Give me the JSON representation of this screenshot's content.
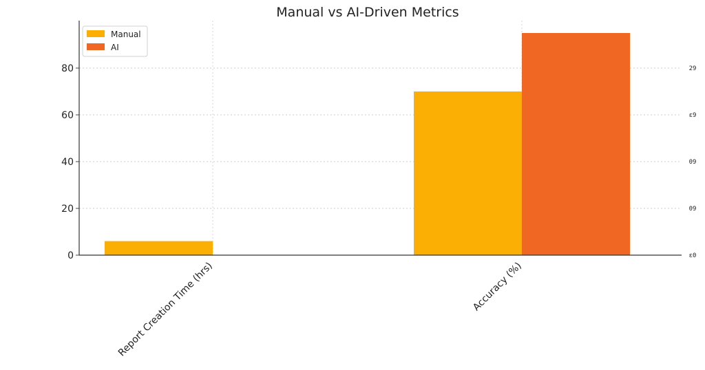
{
  "chart_data": {
    "type": "bar",
    "title": "Manual vs AI-Driven Metrics",
    "xlabel": "",
    "ylabel": "",
    "categories": [
      "Report Creation Time (hrs)",
      "Accuracy (%)"
    ],
    "series": [
      {
        "name": "Manual",
        "values": [
          6,
          70
        ],
        "color": "#FBAF04"
      },
      {
        "name": "AI",
        "values": [
          null,
          95
        ],
        "color": "#F06623"
      }
    ],
    "ylim": [
      0,
      95
    ],
    "yticks": [
      0,
      20,
      40,
      60,
      80
    ],
    "right_tick_labels": [
      "29",
      "ɛ9",
      "09",
      "09",
      "ɛ0"
    ],
    "grid": true,
    "legend_position": "top-left"
  }
}
